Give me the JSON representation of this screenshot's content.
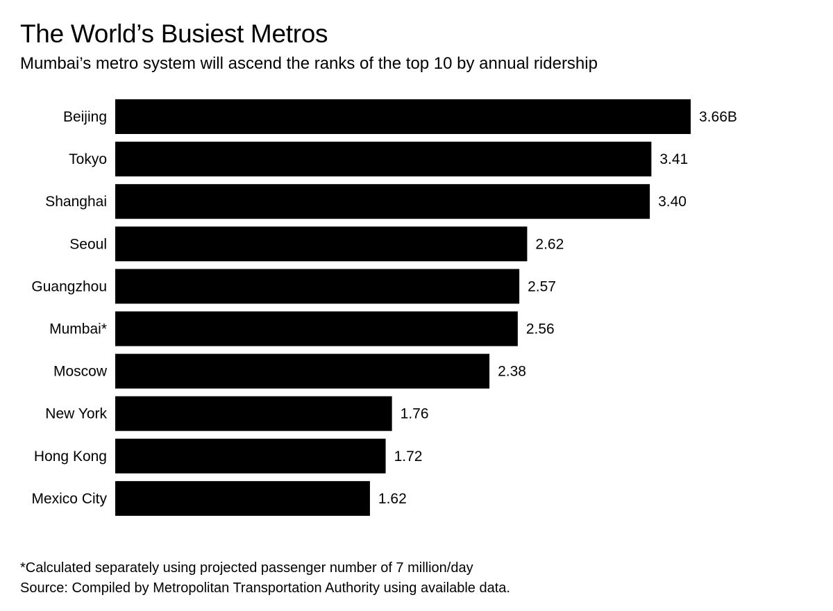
{
  "title": "The World’s Busiest Metros",
  "subtitle": "Mumbai’s metro system will ascend the ranks of the top 10 by annual ridership",
  "footnote": "*Calculated separately using projected passenger number of 7 million/day",
  "source": "Source: Compiled by Metropolitan Transportation Authority using available data.",
  "colors": {
    "bar": "#000000",
    "text": "#000000",
    "background": "#ffffff"
  },
  "chart_data": {
    "type": "bar",
    "orientation": "horizontal",
    "title": "The World’s Busiest Metros",
    "subtitle": "Mumbai’s metro system will ascend the ranks of the top 10 by annual ridership",
    "unit": "B",
    "categories": [
      "Beijing",
      "Tokyo",
      "Shanghai",
      "Seoul",
      "Guangzhou",
      "Mumbai*",
      "Moscow",
      "New York",
      "Hong Kong",
      "Mexico City"
    ],
    "values": [
      3.66,
      3.41,
      3.4,
      2.62,
      2.57,
      2.56,
      2.38,
      1.76,
      1.72,
      1.62
    ],
    "data_labels": [
      "3.66B",
      "3.41",
      "3.40",
      "2.62",
      "2.57",
      "2.56",
      "2.38",
      "1.76",
      "1.72",
      "1.62"
    ],
    "xlim": [
      0,
      3.66
    ],
    "xlabel": "",
    "ylabel": "",
    "grid": false,
    "legend": "none"
  }
}
